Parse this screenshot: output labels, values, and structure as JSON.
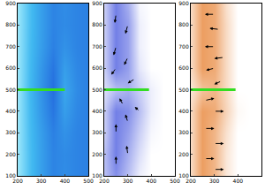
{
  "chart_data": [
    {
      "type": "heatmap",
      "color": "#1a50d8",
      "x": [
        200,
        250,
        300,
        350,
        400,
        450,
        500
      ],
      "y": [
        100,
        200,
        300,
        400,
        500,
        600,
        700,
        800,
        900
      ],
      "z": [
        [
          0.1,
          0.35,
          0.55,
          0.7,
          0.65,
          0.7,
          0.72
        ],
        [
          0.1,
          0.35,
          0.55,
          0.7,
          0.66,
          0.7,
          0.72
        ],
        [
          0.1,
          0.36,
          0.56,
          0.72,
          0.62,
          0.7,
          0.72
        ],
        [
          0.1,
          0.37,
          0.6,
          0.78,
          0.55,
          0.68,
          0.72
        ],
        [
          0.1,
          0.38,
          0.62,
          0.82,
          0.5,
          0.66,
          0.72
        ],
        [
          0.1,
          0.37,
          0.6,
          0.78,
          0.55,
          0.68,
          0.72
        ],
        [
          0.1,
          0.36,
          0.56,
          0.72,
          0.62,
          0.7,
          0.72
        ],
        [
          0.1,
          0.35,
          0.55,
          0.7,
          0.66,
          0.7,
          0.72
        ],
        [
          0.1,
          0.35,
          0.55,
          0.7,
          0.65,
          0.7,
          0.72
        ]
      ],
      "zlim": [
        0,
        1
      ],
      "segment": {
        "x": [
          200,
          400
        ],
        "y": [
          500,
          500
        ],
        "color": "#33dd22"
      },
      "xlim": [
        200,
        500
      ],
      "xticks": [
        200,
        300,
        400,
        500
      ],
      "ylim": [
        100,
        900
      ],
      "yticks": [
        100,
        200,
        300,
        400,
        500,
        600,
        700,
        800,
        900
      ]
    },
    {
      "type": "quiver",
      "color": "#5060e0",
      "x": [
        200,
        250,
        300,
        350,
        400,
        450,
        500
      ],
      "y": [
        100,
        200,
        300,
        400,
        500,
        600,
        700,
        800,
        900
      ],
      "z": [
        [
          0.4,
          0.7,
          0.4,
          0.1,
          0,
          0,
          0
        ],
        [
          0.4,
          0.8,
          0.5,
          0.2,
          0,
          0,
          0
        ],
        [
          0.3,
          0.8,
          0.6,
          0.3,
          0.05,
          0,
          0
        ],
        [
          0.3,
          0.8,
          0.7,
          0.4,
          0.1,
          0,
          0
        ],
        [
          0.2,
          0.4,
          0.5,
          0.3,
          0.1,
          0,
          0
        ],
        [
          0.3,
          0.8,
          0.6,
          0.15,
          0,
          0,
          0
        ],
        [
          0.3,
          0.8,
          0.6,
          0.1,
          0,
          0,
          0
        ],
        [
          0.3,
          0.8,
          0.6,
          0.1,
          0,
          0,
          0
        ],
        [
          0.3,
          0.8,
          0.5,
          0.05,
          0,
          0,
          0
        ]
      ],
      "zlim": [
        0,
        1
      ],
      "arrows": [
        [
          250,
          850,
          -5,
          -40
        ],
        [
          300,
          800,
          -10,
          -40
        ],
        [
          250,
          700,
          -10,
          -40
        ],
        [
          300,
          650,
          -15,
          -35
        ],
        [
          250,
          600,
          -20,
          -30
        ],
        [
          330,
          550,
          -30,
          -20
        ],
        [
          250,
          150,
          0,
          40
        ],
        [
          300,
          200,
          -5,
          40
        ],
        [
          250,
          300,
          0,
          40
        ],
        [
          300,
          350,
          -10,
          35
        ],
        [
          350,
          400,
          -20,
          20
        ],
        [
          280,
          430,
          -15,
          30
        ]
      ],
      "segment": {
        "x": [
          200,
          390
        ],
        "y": [
          500,
          500
        ],
        "color": "#33dd22"
      },
      "xlim": [
        200,
        500
      ],
      "xticks": [
        200,
        300,
        400,
        500
      ],
      "ylim": [
        100,
        900
      ],
      "yticks": [
        100,
        200,
        300,
        400,
        500,
        600,
        700,
        800,
        900
      ]
    },
    {
      "type": "quiver",
      "color": "#e8863a",
      "x": [
        200,
        250,
        300,
        350,
        400,
        450,
        500
      ],
      "y": [
        100,
        200,
        300,
        400,
        500,
        600,
        700,
        800,
        900
      ],
      "z": [
        [
          0.3,
          0.8,
          0.6,
          0.2,
          0,
          0,
          0
        ],
        [
          0.3,
          0.8,
          0.6,
          0.2,
          0,
          0,
          0
        ],
        [
          0.3,
          0.8,
          0.6,
          0.25,
          0,
          0,
          0
        ],
        [
          0.3,
          0.8,
          0.7,
          0.35,
          0.05,
          0,
          0
        ],
        [
          0.2,
          0.5,
          0.6,
          0.3,
          0,
          0,
          0
        ],
        [
          0.3,
          0.8,
          0.7,
          0.3,
          0,
          0,
          0
        ],
        [
          0.3,
          0.8,
          0.7,
          0.3,
          0,
          0,
          0
        ],
        [
          0.3,
          0.8,
          0.7,
          0.3,
          0,
          0,
          0
        ],
        [
          0.3,
          0.8,
          0.7,
          0.25,
          0,
          0,
          0
        ]
      ],
      "zlim": [
        0,
        1
      ],
      "arrows": [
        [
          300,
          850,
          -40,
          0
        ],
        [
          320,
          780,
          -40,
          5
        ],
        [
          300,
          700,
          -40,
          0
        ],
        [
          340,
          650,
          -40,
          -5
        ],
        [
          300,
          600,
          -35,
          -10
        ],
        [
          330,
          540,
          -30,
          -15
        ],
        [
          260,
          450,
          40,
          10
        ],
        [
          300,
          400,
          40,
          0
        ],
        [
          260,
          320,
          40,
          0
        ],
        [
          300,
          250,
          40,
          0
        ],
        [
          260,
          180,
          40,
          0
        ],
        [
          300,
          130,
          40,
          0
        ]
      ],
      "segment": {
        "x": [
          200,
          390
        ],
        "y": [
          500,
          500
        ],
        "color": "#33dd22"
      },
      "xlim": [
        200,
        500
      ],
      "xticks": [
        200,
        300,
        400,
        500
      ],
      "ylim": [
        100,
        900
      ],
      "yticks": [
        100,
        200,
        300,
        400,
        500,
        600,
        700,
        800,
        900
      ]
    }
  ]
}
